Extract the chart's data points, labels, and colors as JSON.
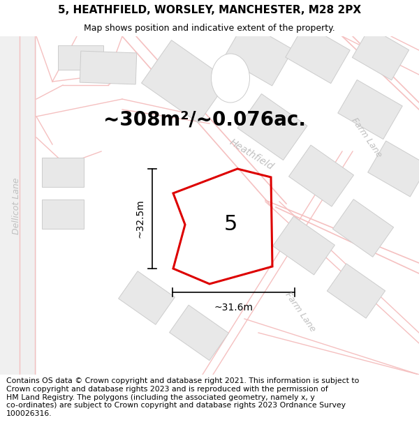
{
  "title": "5, HEATHFIELD, WORSLEY, MANCHESTER, M28 2PX",
  "subtitle": "Map shows position and indicative extent of the property.",
  "footer": "Contains OS data © Crown copyright and database right 2021. This information is subject to\nCrown copyright and database rights 2023 and is reproduced with the permission of\nHM Land Registry. The polygons (including the associated geometry, namely x, y\nco-ordinates) are subject to Crown copyright and database rights 2023 Ordnance Survey\n100026316.",
  "area_label": "~308m²/~0.076ac.",
  "plot_number": "5",
  "dim_width": "~31.6m",
  "dim_height": "~32.5m",
  "map_bg": "#ffffff",
  "road_color": "#f5c0c0",
  "building_fc": "#e8e8e8",
  "building_ec": "#cccccc",
  "plot_color": "#dd0000",
  "street_label_color": "#c0c0c0",
  "left_lane_color": "#e0e0e0",
  "title_fontsize": 11,
  "subtitle_fontsize": 9,
  "footer_fontsize": 7.8,
  "area_label_fontsize": 20,
  "plot_number_fontsize": 22,
  "dim_fontsize": 10,
  "road_label_fontsize": 10
}
